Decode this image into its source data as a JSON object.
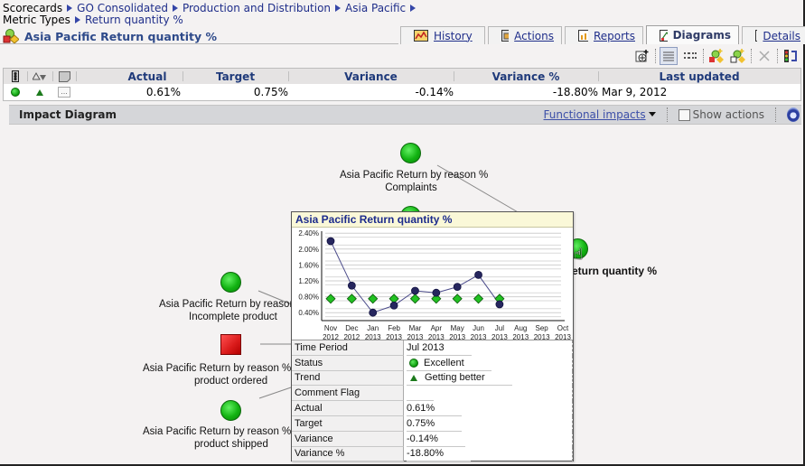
{
  "breadcrumb": {
    "row1": [
      "Scorecards",
      "GO Consolidated",
      "Production and Distribution",
      "Asia Pacific"
    ],
    "row2": [
      "Metric Types",
      "Return quantity %"
    ]
  },
  "page_title": "Asia Pacific Return quantity %",
  "tabs": [
    {
      "label": "History",
      "icon": "history-chart-icon",
      "active": false
    },
    {
      "label": "Actions",
      "icon": "actions-icon",
      "active": false
    },
    {
      "label": "Reports",
      "icon": "reports-bar-icon",
      "active": false
    },
    {
      "label": "Diagrams",
      "icon": "diagram-icon",
      "active": true
    },
    {
      "label": "Details",
      "icon": "info-icon",
      "active": false
    }
  ],
  "toolbar": {
    "buttons": [
      "add-watchlist-icon",
      "list-view-icon",
      "detail-view-icon",
      "new-metric-icon",
      "link-metric-icon",
      "delete-icon",
      "report-link-icon"
    ]
  },
  "metric_table": {
    "headers": {
      "status": "",
      "trend": "",
      "comment": "",
      "actual": "Actual",
      "target": "Target",
      "variance": "Variance",
      "variance_pct": "Variance %",
      "last_updated": "Last updated"
    },
    "row": {
      "status": "green",
      "trend": "up",
      "comment": "...",
      "actual": "0.61%",
      "target": "0.75%",
      "variance": "-0.14%",
      "variance_pct": "-18.80%",
      "last_updated": "Mar 9, 2012"
    }
  },
  "impact_bar": {
    "title": "Impact Diagram",
    "functional_impacts": "Functional impacts",
    "show_actions": "Show actions",
    "show_actions_checked": false
  },
  "diagram": {
    "nodes": [
      {
        "label_line1": "Asia Pacific Return by reason %",
        "label_line2": "Complaints",
        "status": "green"
      },
      {
        "label_line1": "Asia Pacific Return by reason",
        "label_line2": "Incomplete product",
        "status": "green"
      },
      {
        "label_line1": "Asia Pacific Return by reason % W",
        "label_line2": "product ordered",
        "status": "red"
      },
      {
        "label_line1": "Asia Pacific Return by reason % W",
        "label_line2": "product shipped",
        "status": "green"
      },
      {
        "label_line1": "eturn quantity %",
        "label_line2": "",
        "status": "green"
      }
    ]
  },
  "popup": {
    "title": "Asia Pacific Return quantity %",
    "details": [
      {
        "key": "Time Period",
        "value": "Jul 2013"
      },
      {
        "key": "Status",
        "value": "Excellent",
        "icon": "green-dot"
      },
      {
        "key": "Trend",
        "value": "Getting better",
        "icon": "green-up-triangle"
      },
      {
        "key": "Comment Flag",
        "value": ""
      },
      {
        "key": "Actual",
        "value": "0.61%"
      },
      {
        "key": "Target",
        "value": "0.75%"
      },
      {
        "key": "Variance",
        "value": "-0.14%"
      },
      {
        "key": "Variance %",
        "value": "-18.80%"
      }
    ]
  },
  "chart_data": {
    "type": "line",
    "title": "Asia Pacific Return quantity %",
    "categories": [
      "Nov 2012",
      "Dec 2012",
      "Jan 2013",
      "Feb 2013",
      "Mar 2013",
      "Apr 2013",
      "May 2013",
      "Jun 2013",
      "Jul 2013",
      "Aug 2013",
      "Sep 2013",
      "Oct 2013"
    ],
    "x_tick_month": [
      "Nov",
      "Dec",
      "Jan",
      "Feb",
      "Mar",
      "Apr",
      "May",
      "Jun",
      "Jul",
      "Aug",
      "Sep",
      "Oct"
    ],
    "x_tick_year": [
      "2012",
      "2012",
      "2013",
      "2013",
      "2013",
      "2013",
      "2013",
      "2013",
      "2013",
      "2013",
      "2013",
      "2013"
    ],
    "series": [
      {
        "name": "Actual",
        "color": "#2a2a66",
        "marker": "circle",
        "values": [
          2.2,
          1.08,
          0.4,
          0.58,
          0.95,
          0.9,
          1.05,
          1.35,
          0.61,
          null,
          null,
          null
        ]
      },
      {
        "name": "Target",
        "color": "#19b319",
        "marker": "diamond",
        "values": [
          0.75,
          0.75,
          0.75,
          0.75,
          0.75,
          0.75,
          0.75,
          0.75,
          0.75,
          null,
          null,
          null
        ]
      }
    ],
    "y_ticks": [
      "0.40%",
      "0.80%",
      "1.20%",
      "1.60%",
      "2.00%",
      "2.40%"
    ],
    "ylim": [
      0.2,
      2.45
    ],
    "grid": true,
    "xlabel": "",
    "ylabel": ""
  },
  "colors": {
    "link": "#1f2e8a",
    "title": "#2e4a8a",
    "header_text": "#1f3a7a",
    "status_green": "#12b312",
    "status_red": "#d91a1a",
    "popup_title_bg": "#faf8d8"
  }
}
